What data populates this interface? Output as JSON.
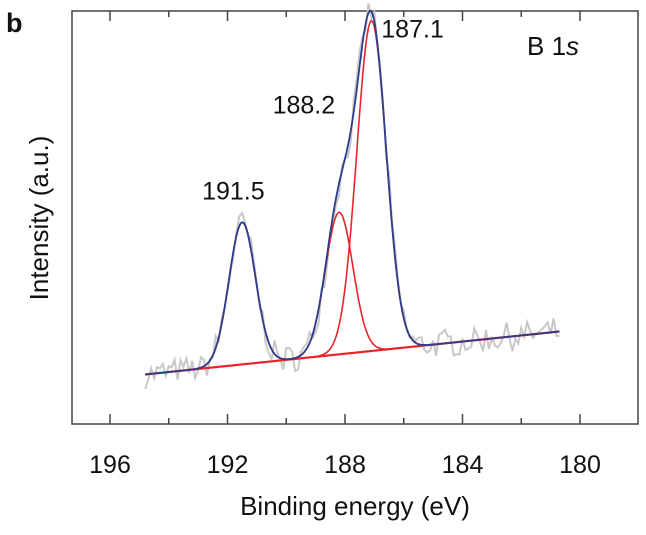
{
  "panel_label": "b",
  "chart_data": {
    "type": "line",
    "annotation": "B 1s",
    "xlabel": "Binding energy (eV)",
    "ylabel": "Intensity (a.u.)",
    "xlim": [
      196,
      180
    ],
    "ylim": [
      -0.15,
      1.1
    ],
    "x_reversed": true,
    "x_ticks": [
      196,
      192,
      188,
      184,
      180
    ],
    "grid": false,
    "peak_labels": [
      {
        "text": "191.5",
        "x": 191.5,
        "y": 0.53
      },
      {
        "text": "188.2",
        "x": 188.2,
        "y": 0.79
      },
      {
        "text": "187.1",
        "x": 187.1,
        "y": 1.02
      }
    ],
    "colors": {
      "raw": "#c8c8c8",
      "envelope": "#2a3e8c",
      "component": "#e8262a",
      "background": "#e8262a"
    },
    "background_line": {
      "x": [
        194.8,
        180.7
      ],
      "y": [
        0.0,
        0.13
      ]
    },
    "components": [
      {
        "center": 191.5,
        "height": 0.43,
        "sigma": 0.45
      },
      {
        "center": 188.2,
        "height": 0.43,
        "sigma": 0.47
      },
      {
        "center": 187.1,
        "height": 1.0,
        "sigma": 0.5
      }
    ],
    "raw_noise_amplitude": 0.035
  }
}
